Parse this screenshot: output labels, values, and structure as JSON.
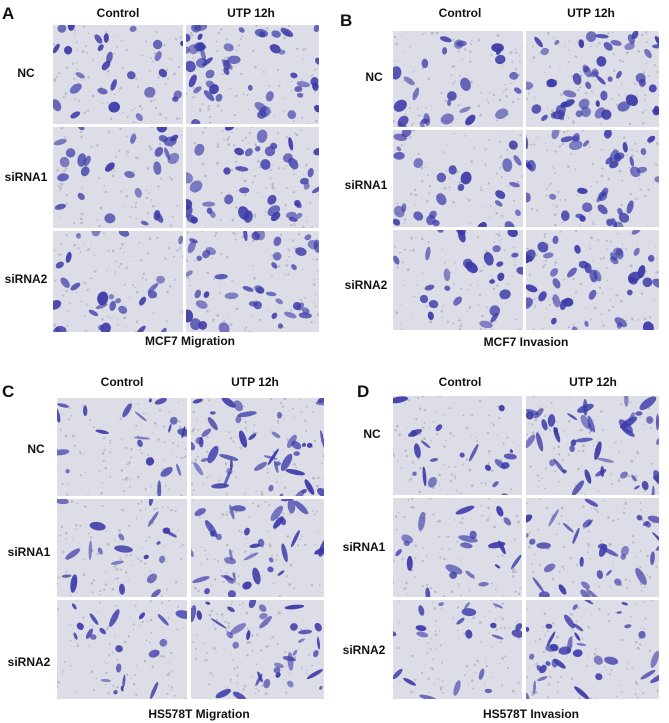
{
  "panels": [
    {
      "letter": "A",
      "columns": [
        "Control",
        "UTP 12h"
      ],
      "rows": [
        "NC",
        "siRNA1",
        "siRNA2"
      ],
      "caption": "MCF7 Migration",
      "style": "mcf"
    },
    {
      "letter": "B",
      "columns": [
        "Control",
        "UTP 12h"
      ],
      "rows": [
        "NC",
        "siRNA1",
        "siRNA2"
      ],
      "caption": "MCF7 Invasion",
      "style": "mcf"
    },
    {
      "letter": "C",
      "columns": [
        "Control",
        "UTP 12h"
      ],
      "rows": [
        "NC",
        "siRNA1",
        "siRNA2"
      ],
      "caption": "HS578T Migration",
      "style": "hs"
    },
    {
      "letter": "D",
      "columns": [
        "Control",
        "UTP 12h"
      ],
      "rows": [
        "NC",
        "siRNA1",
        "siRNA2"
      ],
      "caption": "HS578T Invasion",
      "style": "hs"
    }
  ],
  "colors": {
    "background": "#dcdde6",
    "stain": "#3a3aa8",
    "pore": "#b9bac8"
  }
}
